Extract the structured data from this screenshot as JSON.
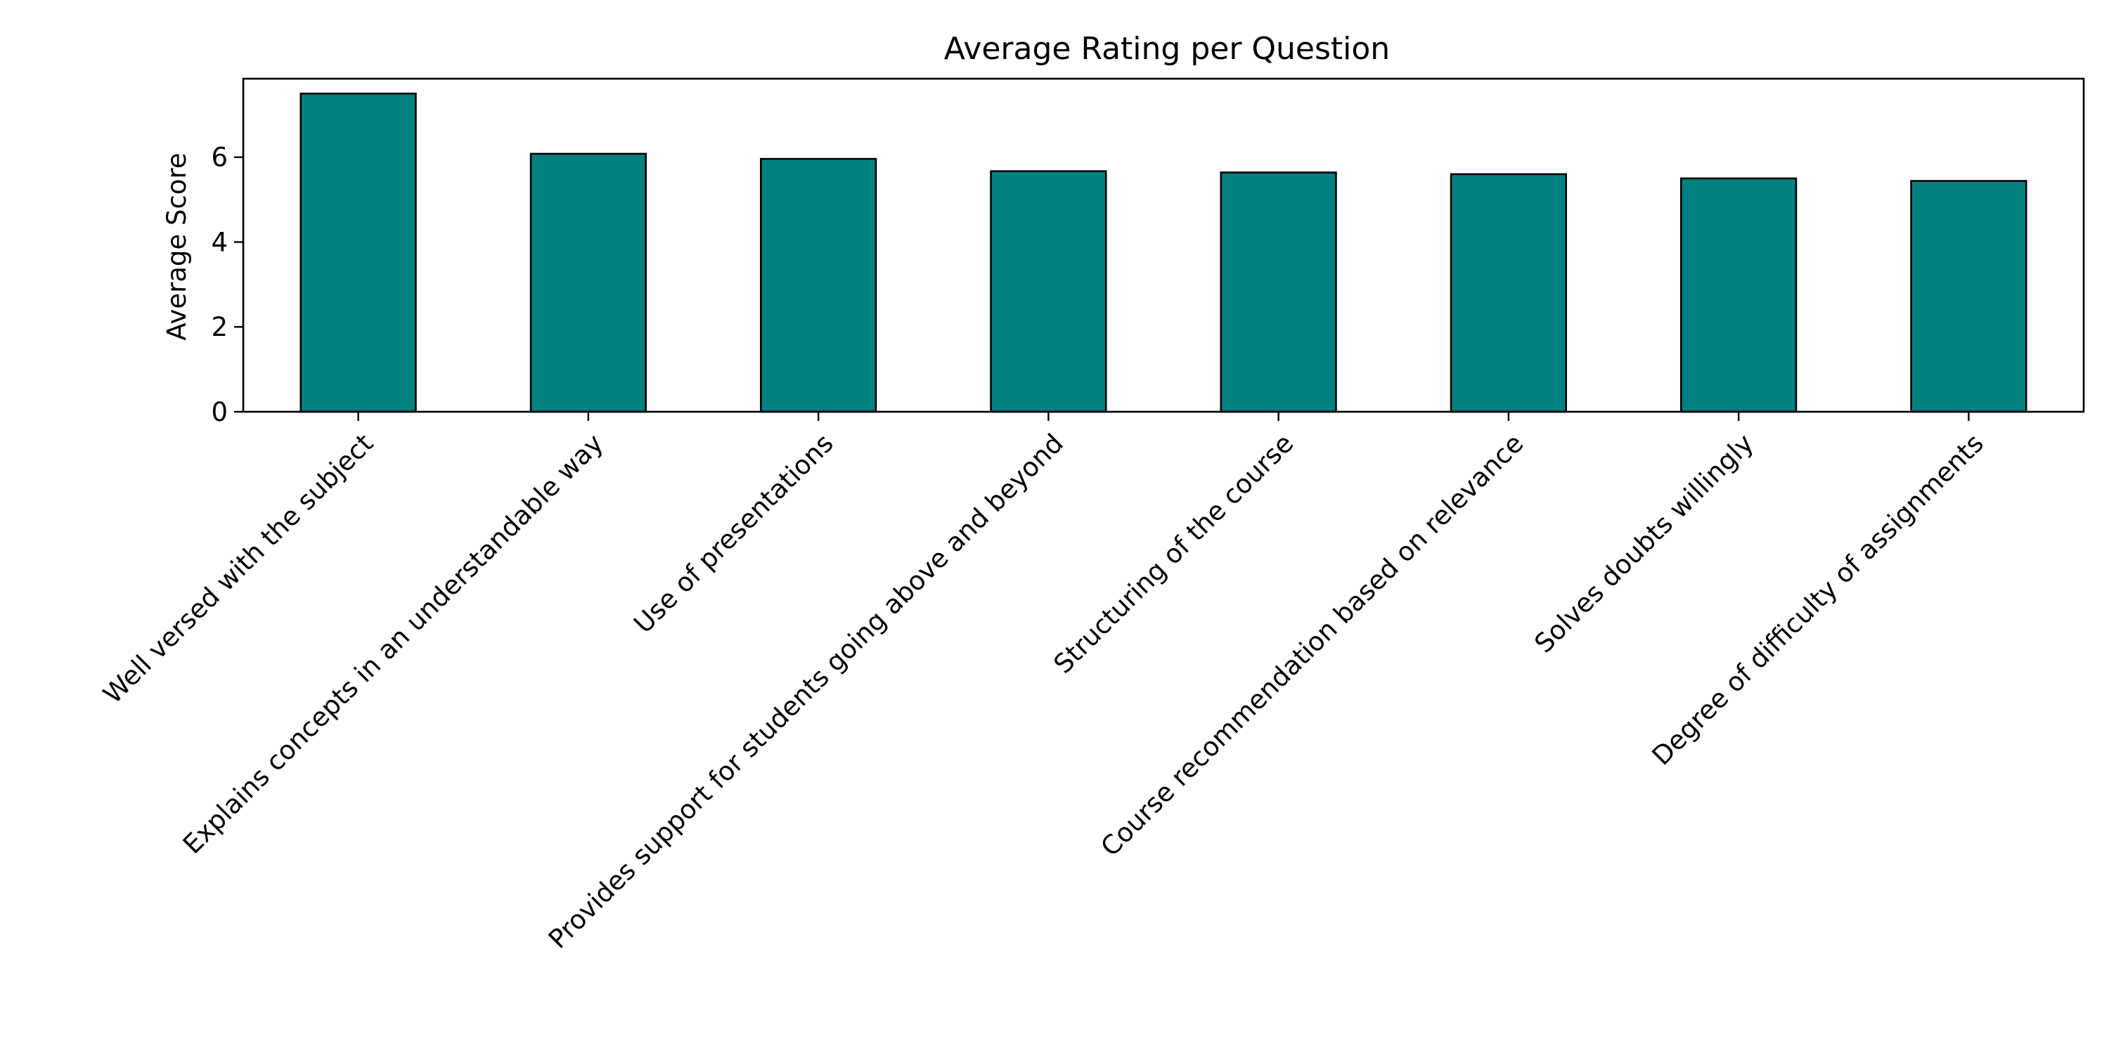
{
  "chart_data": {
    "type": "bar",
    "title": "Average Rating per Question",
    "xlabel": "",
    "ylabel": "Average Score",
    "ylim": [
      0,
      7.85
    ],
    "yticks": [
      0,
      2,
      4,
      6
    ],
    "grid": false,
    "bar_color": "#008080",
    "edge_color": "#000000",
    "categories": [
      "Well versed with the subject",
      "Explains concepts in an understandable way",
      "Use of presentations",
      "Provides support for students going above and beyond",
      "Structuring of the course",
      "Course recommendation based on relevance",
      "Solves doubts willingly",
      "Degree of difficulty of assignments"
    ],
    "values": [
      7.5,
      6.08,
      5.96,
      5.67,
      5.64,
      5.6,
      5.5,
      5.44
    ]
  }
}
